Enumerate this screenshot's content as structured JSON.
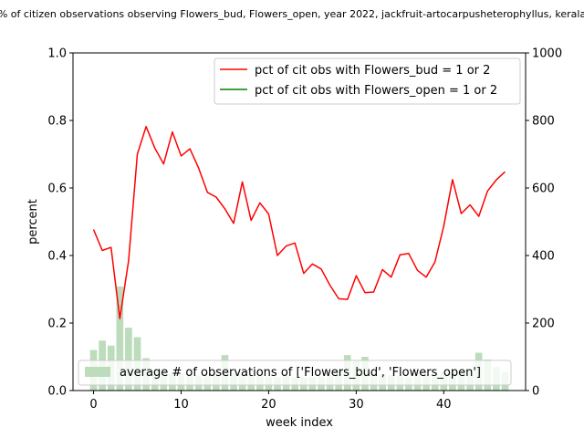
{
  "chart_data": {
    "type": "line",
    "title": "% of citizen observations observing Flowers_bud, Flowers_open, year 2022, jackfruit-artocarpusheterophyllus, kerala",
    "xlabel": "week index",
    "ylabel": "percent",
    "xlim": [
      -2.35,
      49.35
    ],
    "ylim": [
      0,
      1
    ],
    "y2lim": [
      0,
      1000
    ],
    "x_ticks": [
      0,
      10,
      20,
      30,
      40
    ],
    "y_ticks": [
      0.0,
      0.2,
      0.4,
      0.6,
      0.8,
      1.0
    ],
    "y_tick_labels": [
      "0.0",
      "0.2",
      "0.4",
      "0.6",
      "0.8",
      "1.0"
    ],
    "y2_ticks": [
      0,
      200,
      400,
      600,
      800,
      1000
    ],
    "grid": false,
    "legend_placement": "top-right",
    "series": [
      {
        "name": "pct of cit obs with Flowers_bud = 1 or 2",
        "color": "#ff0000",
        "axis": "left",
        "x": [
          0,
          1,
          2,
          3,
          4,
          5,
          6,
          7,
          8,
          9,
          10,
          11,
          12,
          13,
          14,
          15,
          16,
          17,
          18,
          19,
          20,
          21,
          22,
          23,
          24,
          25,
          26,
          27,
          28,
          29,
          30,
          31,
          32,
          33,
          34,
          35,
          36,
          37,
          38,
          39,
          40,
          41,
          42,
          43,
          44,
          45,
          46,
          47
        ],
        "values": [
          0.477,
          0.415,
          0.424,
          0.213,
          0.384,
          0.7,
          0.782,
          0.718,
          0.671,
          0.766,
          0.695,
          0.716,
          0.659,
          0.587,
          0.573,
          0.538,
          0.495,
          0.618,
          0.504,
          0.556,
          0.523,
          0.4,
          0.428,
          0.437,
          0.347,
          0.375,
          0.36,
          0.312,
          0.272,
          0.27,
          0.34,
          0.29,
          0.292,
          0.358,
          0.336,
          0.402,
          0.406,
          0.356,
          0.336,
          0.381,
          0.487,
          0.625,
          0.524,
          0.55,
          0.516,
          0.591,
          0.624,
          0.648
        ]
      },
      {
        "name": "pct of cit obs with Flowers_open = 1 or 2",
        "color": "#008000",
        "axis": "left",
        "x": [],
        "values": []
      }
    ],
    "bars": {
      "name": "average # of observations of ['Flowers_bud', 'Flowers_open']",
      "color": "#bcdcbc",
      "axis": "right",
      "x": [
        0,
        1,
        2,
        3,
        4,
        5,
        6,
        7,
        8,
        9,
        10,
        11,
        12,
        13,
        14,
        15,
        16,
        17,
        18,
        19,
        20,
        21,
        22,
        23,
        24,
        25,
        26,
        27,
        28,
        29,
        30,
        31,
        32,
        33,
        34,
        35,
        36,
        37,
        38,
        39,
        40,
        41,
        42,
        43,
        44,
        45,
        46,
        47
      ],
      "values": [
        120,
        148,
        133,
        308,
        186,
        158,
        96,
        62,
        55,
        52,
        50,
        48,
        45,
        42,
        55,
        105,
        52,
        48,
        45,
        44,
        42,
        40,
        45,
        40,
        38,
        40,
        42,
        46,
        64,
        105,
        90,
        100,
        55,
        48,
        45,
        42,
        40,
        45,
        48,
        52,
        55,
        58,
        60,
        62,
        112,
        92,
        70,
        55
      ]
    }
  }
}
